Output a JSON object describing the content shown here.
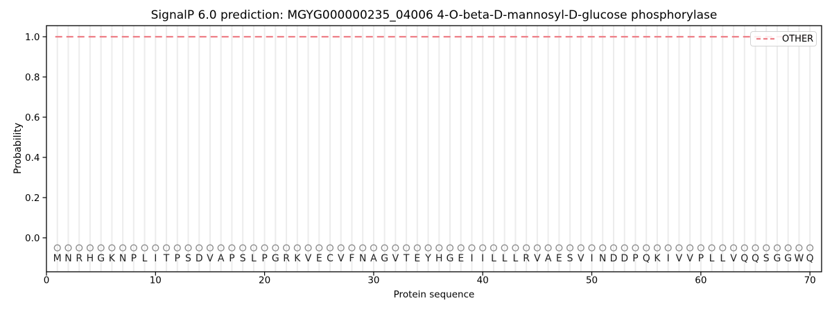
{
  "chart_data": {
    "type": "line",
    "title": "SignalP 6.0 prediction: MGYG000000235_04006 4-O-beta-D-mannosyl-D-glucose phosphorylase",
    "xlabel": "Protein sequence",
    "ylabel": "Probability",
    "xlim": [
      0,
      71
    ],
    "ylim": [
      -0.17,
      1.06
    ],
    "x_ticks": [
      0,
      10,
      20,
      30,
      40,
      50,
      60,
      70
    ],
    "y_ticks": [
      "0.0",
      "0.2",
      "0.4",
      "0.6",
      "0.8",
      "1.0"
    ],
    "grid": "vertical gridline at each residue position, no horizontal gridlines",
    "legend": [
      {
        "label": "OTHER",
        "color": "#ee7e86",
        "line_style": "dashed",
        "position": "upper right"
      }
    ],
    "sequence": "MNRHGKNPLITPSDVAPSLPGRKVECVFNAGVTEYHGEIILLLRVAESVINDDPQKIVVPLLVQQSGGWQ",
    "sequence_length": 70,
    "series": [
      {
        "name": "OTHER",
        "x_start": 1,
        "x_end": 70,
        "constant_value": 1.0
      }
    ],
    "residue_markers": {
      "shape": "open-circle",
      "y": -0.05,
      "color": "#8e8e8e"
    },
    "residue_letters_y": -0.1,
    "colors": {
      "grid": "#ececec",
      "frame": "#000000",
      "letters": "#1f1f1f",
      "tick_labels": "#000000"
    }
  }
}
